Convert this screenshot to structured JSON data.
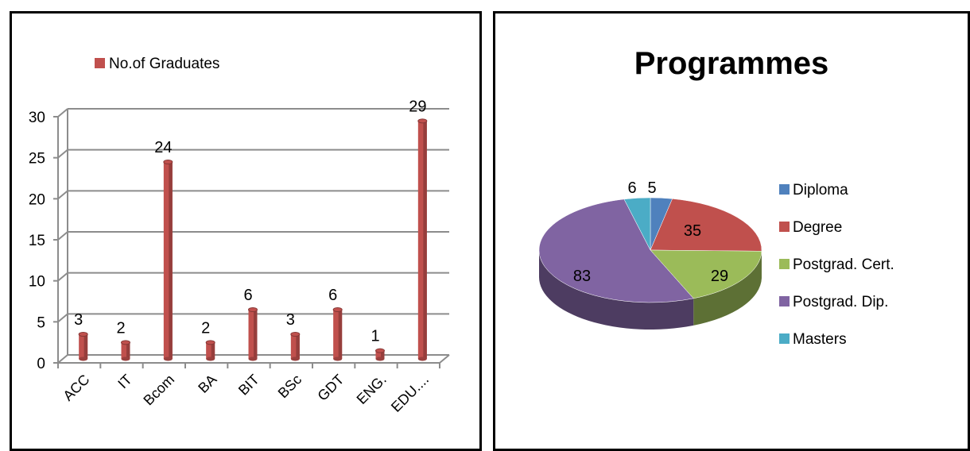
{
  "chart_data": [
    {
      "type": "bar",
      "title": "",
      "xlabel": "",
      "ylabel": "",
      "categories": [
        "ACC",
        "IT",
        "Bcom",
        "BA",
        "BIT",
        "BSc",
        "GDT",
        "ENG.",
        "EDU...."
      ],
      "series": [
        {
          "name": "No.of Graduates",
          "color": "#C0504D",
          "values": [
            3,
            2,
            24,
            2,
            6,
            3,
            6,
            1,
            29
          ]
        }
      ],
      "ylim": [
        0,
        30
      ],
      "yticks": [
        "0",
        "5",
        "10",
        "15",
        "20",
        "25",
        "30"
      ],
      "data_labels": [
        "3",
        "2",
        "24",
        "2",
        "6",
        "3",
        "6",
        "1",
        "29"
      ],
      "grid": true,
      "legend_position": "top-left"
    },
    {
      "type": "pie",
      "title": "Programmes",
      "slices": [
        {
          "label": "Diploma",
          "value": 5,
          "color": "#4F81BD",
          "display": "5"
        },
        {
          "label": "Degree",
          "value": 35,
          "color": "#C0504D",
          "display": "35"
        },
        {
          "label": "Postgrad. Cert.",
          "value": 29,
          "color": "#9BBB59",
          "display": "29"
        },
        {
          "label": "Postgrad. Dip.",
          "value": 83,
          "color": "#8064A2",
          "display": "83"
        },
        {
          "label": "Masters",
          "value": 6,
          "color": "#4BACC6",
          "display": "6"
        }
      ],
      "legend_position": "right"
    }
  ]
}
